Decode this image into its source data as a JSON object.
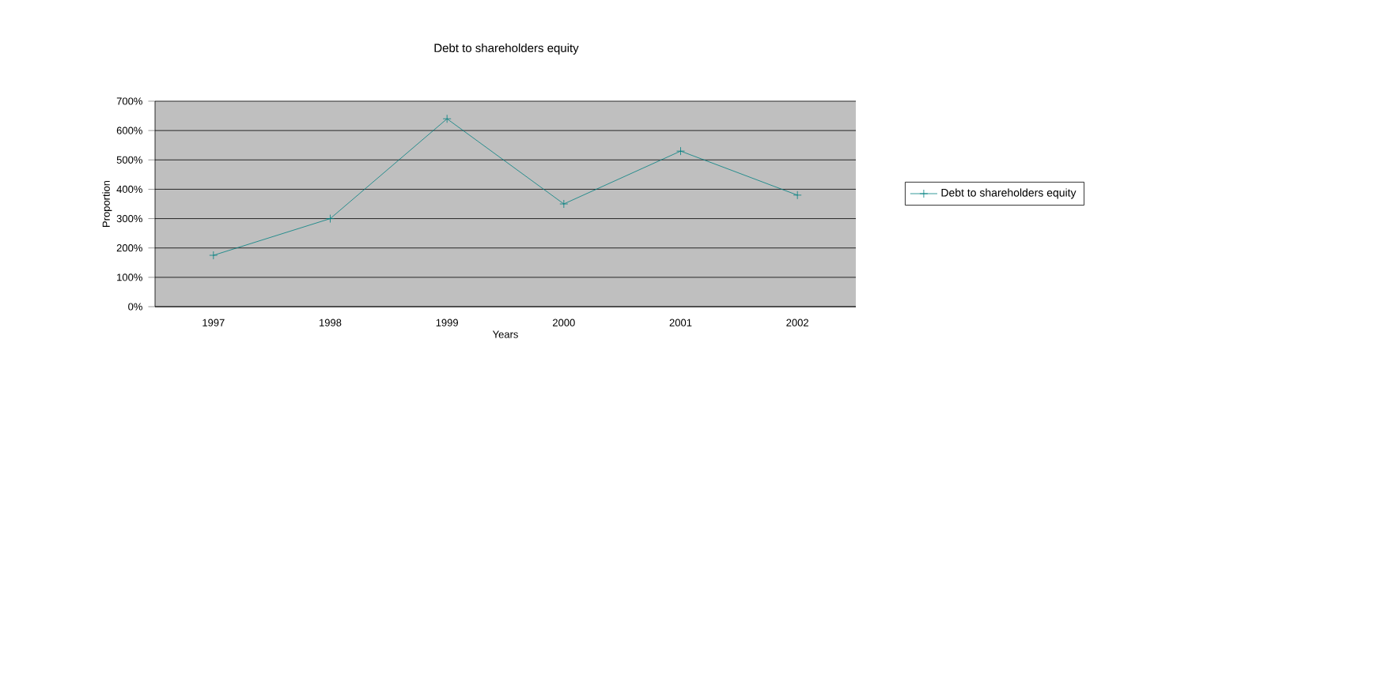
{
  "chart_data": {
    "type": "line",
    "title": "Debt to shareholders equity",
    "xlabel": "Years",
    "ylabel": "Proportion",
    "categories": [
      "1997",
      "1998",
      "1999",
      "2000",
      "2001",
      "2002"
    ],
    "series": [
      {
        "name": "Debt to shareholders equity",
        "color": "#008080",
        "values": [
          175,
          300,
          640,
          350,
          530,
          380
        ]
      }
    ],
    "ylim": [
      0,
      700
    ],
    "yticks": [
      {
        "value": 0,
        "label": "0%"
      },
      {
        "value": 100,
        "label": "100%"
      },
      {
        "value": 200,
        "label": "200%"
      },
      {
        "value": 300,
        "label": "300%"
      },
      {
        "value": 400,
        "label": "400%"
      },
      {
        "value": 500,
        "label": "500%"
      },
      {
        "value": 600,
        "label": "600%"
      },
      {
        "value": 700,
        "label": "700%"
      }
    ],
    "grid": "y",
    "legend": "right",
    "marker": "cross",
    "line_style": "solid"
  }
}
